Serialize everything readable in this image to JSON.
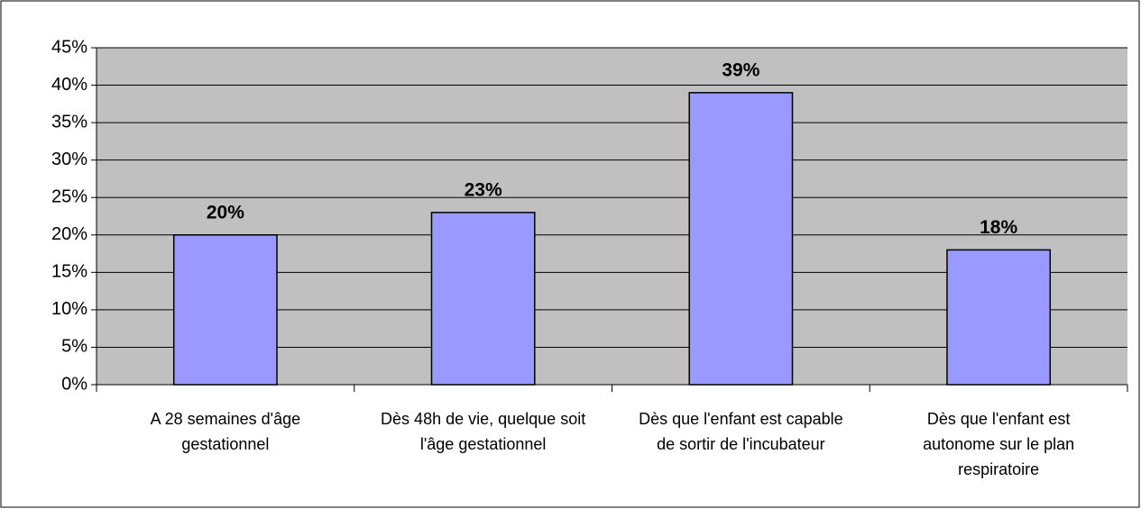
{
  "chart_data": {
    "type": "bar",
    "categories": [
      "A 28 semaines d'âge gestationnel",
      "Dès 48h de vie, quelque soit l'âge gestationnel",
      "Dès que l'enfant est capable de sortir de l'incubateur",
      "Dès que l'enfant est autonome sur le plan respiratoire"
    ],
    "values": [
      20,
      23,
      39,
      18
    ],
    "value_labels": [
      "20%",
      "23%",
      "39%",
      "18%"
    ],
    "color": "#9999ff",
    "ylim": [
      0,
      45
    ],
    "yticks": [
      {
        "value": 0,
        "label": "0%"
      },
      {
        "value": 5,
        "label": "5%"
      },
      {
        "value": 10,
        "label": "10%"
      },
      {
        "value": 15,
        "label": "15%"
      },
      {
        "value": 20,
        "label": "20%"
      },
      {
        "value": 25,
        "label": "25%"
      },
      {
        "value": 30,
        "label": "30%"
      },
      {
        "value": 35,
        "label": "35%"
      },
      {
        "value": 40,
        "label": "40%"
      },
      {
        "value": 45,
        "label": "45%"
      }
    ],
    "grid": true
  }
}
